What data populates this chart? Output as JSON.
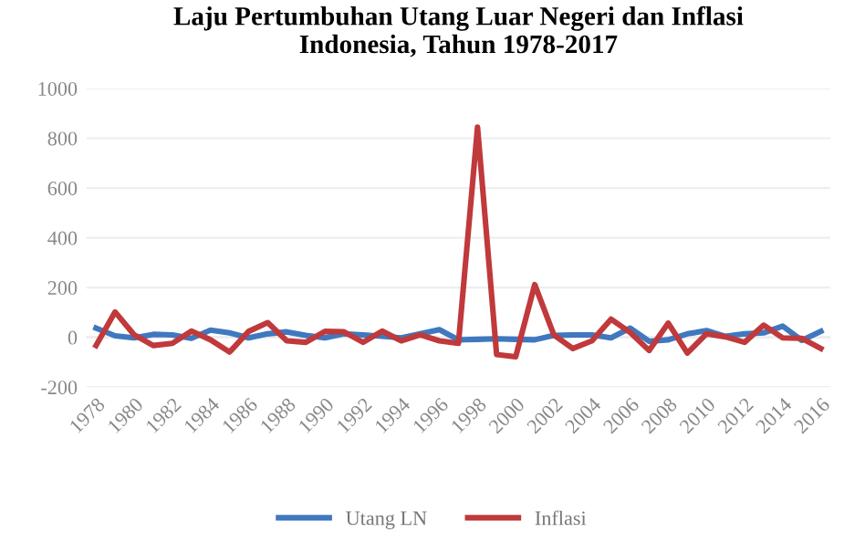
{
  "chart_data": {
    "type": "line",
    "title": "Laju Pertumbuhan Utang Luar Negeri dan Inflasi\nIndonesia, Tahun 1978-2017",
    "categories": [
      "1978",
      null,
      "1980",
      null,
      "1982",
      null,
      "1984",
      null,
      "1986",
      null,
      "1988",
      null,
      "1990",
      null,
      "1992",
      null,
      "1994",
      null,
      "1996",
      null,
      "1998",
      null,
      "2000",
      null,
      "2002",
      null,
      "2004",
      null,
      "2006",
      null,
      "2008",
      null,
      "2010",
      null,
      "2012",
      null,
      "2014",
      null,
      "2016"
    ],
    "series": [
      {
        "name": "Utang LN",
        "color": "#3f78bf",
        "values": [
          37,
          6,
          -2,
          12,
          10,
          -4,
          29,
          18,
          -2,
          14,
          22,
          8,
          -2,
          14,
          10,
          4,
          -2,
          14,
          31,
          -10,
          -8,
          -6,
          -8,
          -10,
          8,
          10,
          10,
          -2,
          37,
          -16,
          -10,
          14,
          27,
          4,
          14,
          18,
          45,
          -12,
          24
        ]
      },
      {
        "name": "Inflasi",
        "color": "#c0393b",
        "values": [
          -33,
          102,
          10,
          -33,
          -24,
          25,
          -10,
          -59,
          24,
          59,
          -14,
          -20,
          24,
          22,
          -20,
          25,
          -14,
          10,
          -14,
          -24,
          845,
          -69,
          -78,
          212,
          10,
          -45,
          -14,
          73,
          20,
          -53,
          57,
          -63,
          14,
          2,
          -20,
          49,
          -2,
          -4,
          -45
        ]
      }
    ],
    "ylim": [
      -200,
      1000
    ],
    "yticks": [
      -200,
      0,
      200,
      400,
      600,
      800,
      1000
    ],
    "grid": "y",
    "legend": "bottom"
  }
}
